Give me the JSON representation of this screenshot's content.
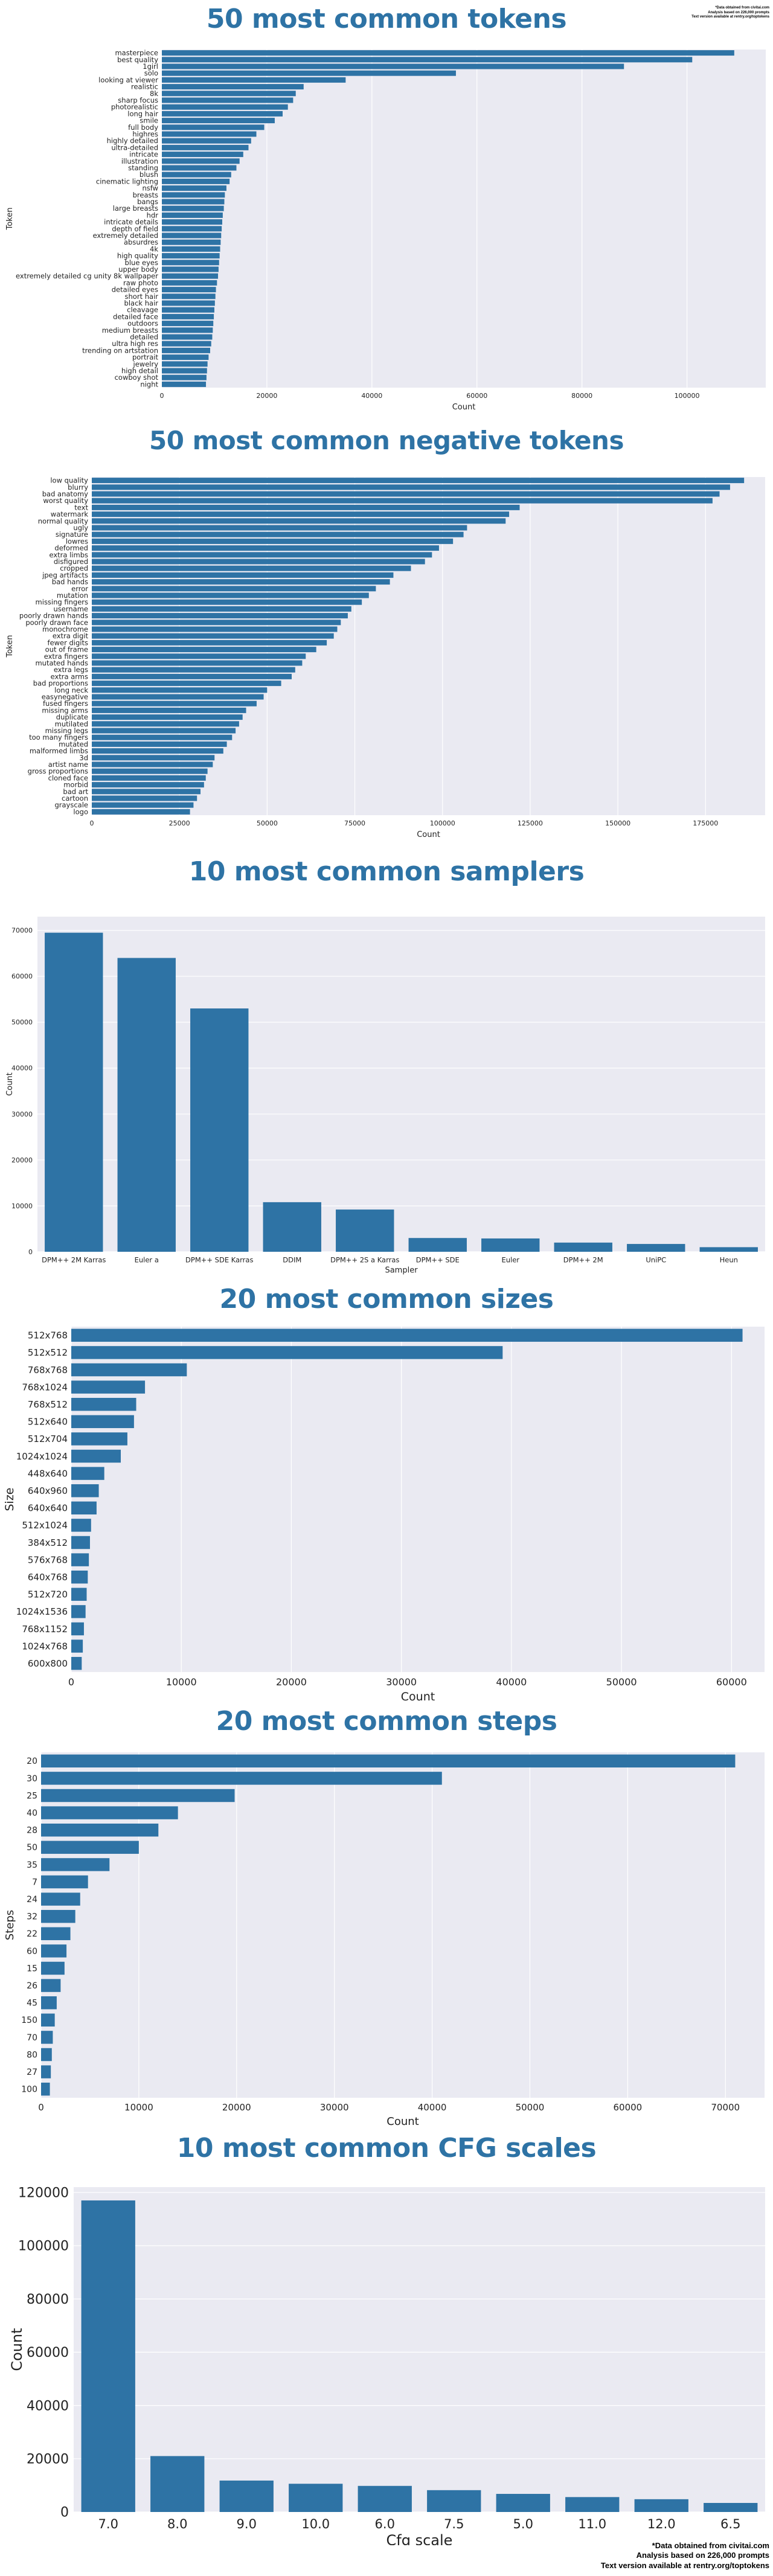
{
  "colors": {
    "bar": "#2e73a5",
    "plot_bg": "#eaeaf2",
    "grid": "#ffffff",
    "title": "#2e73a5",
    "text": "#222222"
  },
  "top_note": {
    "line1": "*Data obtained from civitai.com",
    "line2": "Analysis based on 226,000 prompts",
    "line3": "Text version available at rentry.org/toptokens"
  },
  "bottom_note": {
    "line1": "*Data obtained from civitai.com",
    "line2": "Analysis based on 226,000 prompts",
    "line3": "Text version available at rentry.org/toptokens"
  },
  "chart_data": [
    {
      "type": "bar",
      "orientation": "horizontal",
      "title": "50 most common tokens",
      "xlabel": "Count",
      "ylabel": "Token",
      "xlim": [
        0,
        115000
      ],
      "xticks": [
        0,
        20000,
        40000,
        60000,
        80000,
        100000
      ],
      "grid": true,
      "categories": [
        "masterpiece",
        "best quality",
        "1girl",
        "solo",
        "looking at viewer",
        "realistic",
        "8k",
        "sharp focus",
        "photorealistic",
        "long hair",
        "smile",
        "full body",
        "highres",
        "highly detailed",
        "ultra-detailed",
        "intricate",
        "illustration",
        "standing",
        "blush",
        "cinematic lighting",
        "nsfw",
        "breasts",
        "bangs",
        "large breasts",
        "hdr",
        "intricate details",
        "depth of field",
        "extremely detailed",
        "absurdres",
        "4k",
        "high quality",
        "blue eyes",
        "upper body",
        "extremely detailed cg unity 8k wallpaper",
        "raw photo",
        "detailed eyes",
        "short hair",
        "black hair",
        "cleavage",
        "detailed face",
        "outdoors",
        "medium breasts",
        "detailed",
        "ultra high res",
        "trending on artstation",
        "portrait",
        "jewelry",
        "high detail",
        "cowboy shot",
        "night"
      ],
      "values": [
        109000,
        101000,
        88000,
        56000,
        35000,
        27000,
        25500,
        25000,
        24000,
        23000,
        21500,
        19500,
        18000,
        17000,
        16500,
        15500,
        14800,
        14200,
        13200,
        12900,
        12300,
        12000,
        11900,
        11800,
        11600,
        11500,
        11400,
        11300,
        11200,
        11100,
        11000,
        10900,
        10800,
        10700,
        10500,
        10300,
        10200,
        10100,
        10000,
        9900,
        9800,
        9700,
        9600,
        9400,
        9200,
        8900,
        8700,
        8600,
        8500,
        8400
      ]
    },
    {
      "type": "bar",
      "orientation": "horizontal",
      "title": "50 most common negative tokens",
      "xlabel": "Count",
      "ylabel": "Token",
      "xlim": [
        0,
        192000
      ],
      "xticks": [
        0,
        25000,
        50000,
        75000,
        100000,
        125000,
        150000,
        175000
      ],
      "grid": true,
      "categories": [
        "low quality",
        "blurry",
        "bad anatomy",
        "worst quality",
        "text",
        "watermark",
        "normal quality",
        "ugly",
        "signature",
        "lowres",
        "deformed",
        "extra limbs",
        "disfigured",
        "cropped",
        "jpeg artifacts",
        "bad hands",
        "error",
        "mutation",
        "missing fingers",
        "username",
        "poorly drawn hands",
        "poorly drawn face",
        "monochrome",
        "extra digit",
        "fewer digits",
        "out of frame",
        "extra fingers",
        "mutated hands",
        "extra legs",
        "extra arms",
        "bad proportions",
        "long neck",
        "easynegative",
        "fused fingers",
        "missing arms",
        "duplicate",
        "mutilated",
        "missing legs",
        "too many fingers",
        "mutated",
        "malformed limbs",
        "3d",
        "artist name",
        "gross proportions",
        "cloned face",
        "morbid",
        "bad art",
        "cartoon",
        "grayscale",
        "logo"
      ],
      "values": [
        186000,
        182000,
        179000,
        177000,
        122000,
        119000,
        118000,
        107000,
        106000,
        103000,
        99000,
        97000,
        95000,
        91000,
        86000,
        85000,
        81000,
        79000,
        77000,
        74000,
        73000,
        71000,
        70000,
        69000,
        67000,
        64000,
        61000,
        60000,
        58000,
        57000,
        54000,
        50000,
        49000,
        47000,
        44000,
        43000,
        42000,
        41000,
        40000,
        38500,
        37500,
        35000,
        34500,
        33000,
        32500,
        32000,
        31000,
        30000,
        29000,
        28000
      ]
    },
    {
      "type": "bar",
      "orientation": "vertical",
      "title": "10 most common samplers",
      "xlabel": "Sampler",
      "ylabel": "Count",
      "ylim": [
        0,
        73000
      ],
      "yticks": [
        0,
        10000,
        20000,
        30000,
        40000,
        50000,
        60000,
        70000
      ],
      "grid": true,
      "categories": [
        "DPM++ 2M Karras",
        "Euler a",
        "DPM++ SDE Karras",
        "DDIM",
        "DPM++ 2S a Karras",
        "DPM++ SDE",
        "Euler",
        "DPM++ 2M",
        "UniPC",
        "Heun"
      ],
      "values": [
        69500,
        64000,
        53000,
        10800,
        9200,
        3000,
        2900,
        2000,
        1700,
        1000
      ]
    },
    {
      "type": "bar",
      "orientation": "horizontal",
      "title": "20 most common sizes",
      "xlabel": "Count",
      "ylabel": "Size",
      "xlim": [
        0,
        63000
      ],
      "xticks": [
        0,
        10000,
        20000,
        30000,
        40000,
        50000,
        60000
      ],
      "grid": true,
      "categories": [
        "512x768",
        "512x512",
        "768x768",
        "768x1024",
        "768x512",
        "512x640",
        "512x704",
        "1024x1024",
        "448x640",
        "640x960",
        "640x640",
        "512x1024",
        "384x512",
        "576x768",
        "640x768",
        "512x720",
        "1024x1536",
        "768x1152",
        "1024x768",
        "600x800"
      ],
      "values": [
        61000,
        39200,
        10500,
        6700,
        5900,
        5700,
        5100,
        4500,
        3000,
        2500,
        2300,
        1800,
        1700,
        1600,
        1500,
        1400,
        1300,
        1150,
        1050,
        950
      ]
    },
    {
      "type": "bar",
      "orientation": "horizontal",
      "title": "20 most common steps",
      "xlabel": "Count",
      "ylabel": "Steps",
      "xlim": [
        0,
        74000
      ],
      "xticks": [
        0,
        10000,
        20000,
        30000,
        40000,
        50000,
        60000,
        70000
      ],
      "grid": true,
      "categories": [
        "20",
        "30",
        "25",
        "40",
        "28",
        "50",
        "35",
        "7",
        "24",
        "32",
        "22",
        "60",
        "15",
        "26",
        "45",
        "150",
        "70",
        "80",
        "27",
        "100"
      ],
      "values": [
        71000,
        41000,
        19800,
        14000,
        12000,
        10000,
        7000,
        4800,
        4000,
        3500,
        3000,
        2600,
        2400,
        2000,
        1600,
        1400,
        1200,
        1100,
        1000,
        900
      ]
    },
    {
      "type": "bar",
      "orientation": "vertical",
      "title": "10 most common CFG scales",
      "xlabel": "Cfg scale",
      "ylabel": "Count",
      "ylim": [
        0,
        122000
      ],
      "yticks": [
        0,
        20000,
        40000,
        60000,
        80000,
        100000,
        120000
      ],
      "grid": true,
      "categories": [
        "7.0",
        "8.0",
        "9.0",
        "10.0",
        "6.0",
        "7.5",
        "5.0",
        "11.0",
        "12.0",
        "6.5"
      ],
      "values": [
        117000,
        21000,
        11800,
        10600,
        9800,
        8200,
        6800,
        5600,
        4800,
        3400
      ]
    }
  ]
}
